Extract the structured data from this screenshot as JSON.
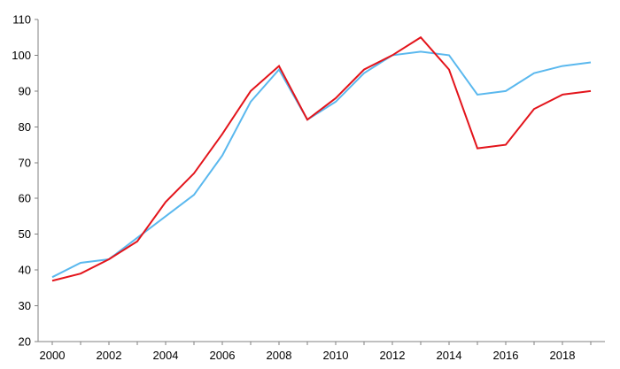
{
  "chart_data": {
    "type": "line",
    "title": "",
    "xlabel": "",
    "ylabel": "",
    "x": [
      2000,
      2001,
      2002,
      2003,
      2004,
      2005,
      2006,
      2007,
      2008,
      2009,
      2010,
      2011,
      2012,
      2013,
      2014,
      2015,
      2016,
      2017,
      2018,
      2019
    ],
    "xlim": [
      2000,
      2019
    ],
    "ylim": [
      20,
      110
    ],
    "x_ticks": [
      "2000",
      "2002",
      "2004",
      "2006",
      "2008",
      "2010",
      "2012",
      "2014",
      "2016",
      "2018"
    ],
    "y_ticks": [
      "20",
      "30",
      "40",
      "50",
      "60",
      "70",
      "80",
      "90",
      "100",
      "110"
    ],
    "grid": false,
    "legend": "none",
    "series": [
      {
        "color": "#5ab8ee",
        "values": [
          38,
          42,
          43,
          49,
          55,
          61,
          72,
          87,
          96,
          82,
          87,
          95,
          100,
          101,
          100,
          89,
          90,
          95,
          97,
          98
        ]
      },
      {
        "color": "#e3141b",
        "values": [
          37,
          39,
          43,
          48,
          59,
          67,
          78,
          90,
          97,
          82,
          88,
          96,
          100,
          105,
          96,
          74,
          75,
          85,
          89,
          90
        ]
      }
    ]
  }
}
